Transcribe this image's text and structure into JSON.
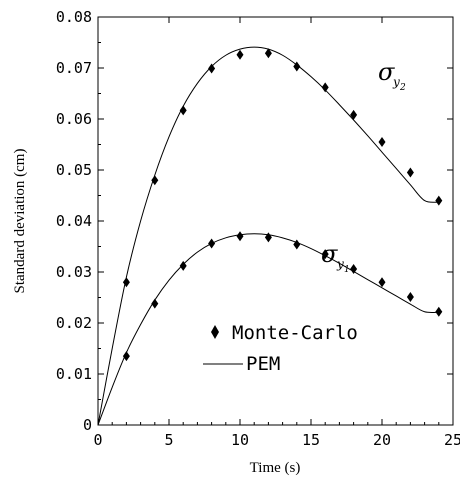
{
  "chart_data": {
    "type": "line",
    "xlabel": "Time (s)",
    "ylabel": "Standard deviation (cm)",
    "xlim": [
      0,
      25
    ],
    "ylim": [
      0,
      0.08
    ],
    "x_ticks": [
      0,
      5,
      10,
      15,
      20,
      25
    ],
    "y_ticks": [
      0,
      0.01,
      0.02,
      0.03,
      0.04,
      0.05,
      0.06,
      0.07,
      0.08
    ],
    "x_tick_labels": [
      "0",
      "5",
      "10",
      "15",
      "20",
      "25"
    ],
    "y_tick_labels": [
      "0",
      "0.01",
      "0.02",
      "0.03",
      "0.04",
      "0.05",
      "0.06",
      "0.07",
      "0.08"
    ],
    "grid": false,
    "legend_position": "lower-center",
    "legend": [
      {
        "label": "Monte-Carlo",
        "marker": "diamond"
      },
      {
        "label": "PEM",
        "marker": "line"
      }
    ],
    "series": [
      {
        "curve_label": {
          "symbol": "σ",
          "sub": "y",
          "subsub": "2"
        },
        "monte_carlo": {
          "x": [
            2,
            4,
            6,
            8,
            10,
            12,
            14,
            16,
            18,
            20,
            22,
            24
          ],
          "y": [
            0.028,
            0.048,
            0.0617,
            0.0699,
            0.0726,
            0.0729,
            0.0703,
            0.0662,
            0.0608,
            0.0555,
            0.0495,
            0.044
          ]
        },
        "pem": {
          "x": [
            0,
            1,
            2,
            3,
            4,
            5,
            6,
            7,
            8,
            9,
            10,
            11,
            12,
            13,
            14,
            15,
            16,
            17,
            18,
            19,
            20,
            21,
            22,
            23,
            24
          ],
          "y": [
            0,
            0.015,
            0.029,
            0.04,
            0.049,
            0.0565,
            0.0625,
            0.067,
            0.0703,
            0.0725,
            0.0737,
            0.0741,
            0.0737,
            0.0725,
            0.0706,
            0.0683,
            0.0657,
            0.0628,
            0.0598,
            0.0567,
            0.0535,
            0.0503,
            0.0471,
            0.044,
            0.0437
          ]
        }
      },
      {
        "curve_label": {
          "symbol": "σ",
          "sub": "y",
          "subsub": "1"
        },
        "monte_carlo": {
          "x": [
            2,
            4,
            6,
            8,
            10,
            12,
            14,
            16,
            18,
            20,
            22,
            24
          ],
          "y": [
            0.0135,
            0.0238,
            0.0312,
            0.0356,
            0.037,
            0.0368,
            0.0354,
            0.0335,
            0.0306,
            0.028,
            0.0251,
            0.0222
          ]
        },
        "pem": {
          "x": [
            0,
            1,
            2,
            3,
            4,
            5,
            6,
            7,
            8,
            9,
            10,
            11,
            12,
            13,
            14,
            15,
            16,
            17,
            18,
            19,
            20,
            21,
            22,
            23,
            24
          ],
          "y": [
            0,
            0.0074,
            0.0142,
            0.0197,
            0.0245,
            0.0284,
            0.0315,
            0.0339,
            0.0356,
            0.0367,
            0.0373,
            0.0375,
            0.0373,
            0.0367,
            0.0358,
            0.0346,
            0.0332,
            0.0317,
            0.0301,
            0.0285,
            0.0269,
            0.0253,
            0.0237,
            0.0222,
            0.0221
          ]
        }
      }
    ]
  }
}
